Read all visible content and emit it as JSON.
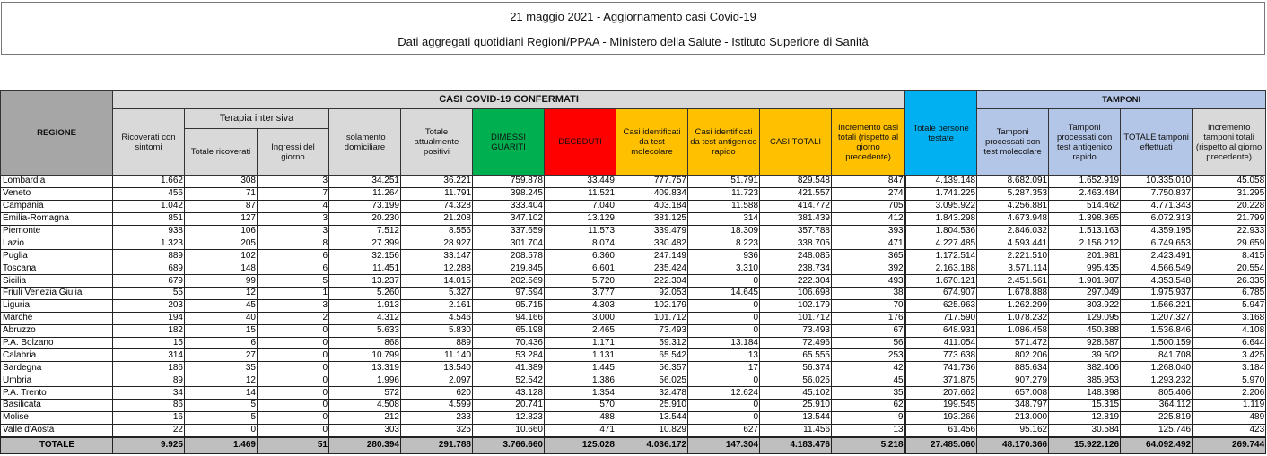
{
  "title": {
    "line1": "21 maggio 2021 - Aggiornamento casi Covid-19",
    "line2": "Dati aggregati quotidiani Regioni/PPAA - Ministero della Salute - Istituto Superiore di Sanità"
  },
  "header": {
    "regione": "REGIONE",
    "casi_group": "CASI COVID-19 CONFERMATI",
    "tamponi_group": "TAMPONI",
    "terapia_group": "Terapia intensiva",
    "ricoverati": "Ricoverati con sintomi",
    "ti_totale": "Totale ricoverati",
    "ti_ingressi": "Ingressi del giorno",
    "isolamento": "Isolamento domiciliare",
    "attualmente_positivi": "Totale attualmente positivi",
    "dimessi": "DIMESSI GUARITI",
    "deceduti": "DECEDUTI",
    "casi_molecolare": "Casi identificati da test molecolare",
    "casi_antigenico": "Casi identificati da test antigenico rapido",
    "casi_totali": "CASI TOTALI",
    "incremento_casi": "Incremento casi totali (rispetto al giorno precedente)",
    "persone_testate": "Totale persone testate",
    "tamponi_molecolare": "Tamponi processati con test molecolare",
    "tamponi_antigenico": "Tamponi processati con test antigenico rapido",
    "tamponi_totale": "TOTALE tamponi effettuati",
    "incremento_tamponi": "Incremento tamponi totali (rispetto al giorno precedente)"
  },
  "colors": {
    "dimessi": "#00b050",
    "deceduti": "#ff0000",
    "casi": "#ffc000",
    "persone_testate": "#00b0f0",
    "tamponi": "#b4c6e7",
    "header_grey": "#a6a6a6"
  },
  "rows": [
    [
      "Lombardia",
      "1.662",
      "308",
      "3",
      "34.251",
      "36.221",
      "759.878",
      "33.449",
      "777.757",
      "51.791",
      "829.548",
      "847",
      "4.139.148",
      "8.682.091",
      "1.652.919",
      "10.335.010",
      "45.058"
    ],
    [
      "Veneto",
      "456",
      "71",
      "7",
      "11.264",
      "11.791",
      "398.245",
      "11.521",
      "409.834",
      "11.723",
      "421.557",
      "274",
      "1.741.225",
      "5.287.353",
      "2.463.484",
      "7.750.837",
      "31.295"
    ],
    [
      "Campania",
      "1.042",
      "87",
      "4",
      "73.199",
      "74.328",
      "333.404",
      "7.040",
      "403.184",
      "11.588",
      "414.772",
      "705",
      "3.095.922",
      "4.256.881",
      "514.462",
      "4.771.343",
      "20.228"
    ],
    [
      "Emilia-Romagna",
      "851",
      "127",
      "3",
      "20.230",
      "21.208",
      "347.102",
      "13.129",
      "381.125",
      "314",
      "381.439",
      "412",
      "1.843.298",
      "4.673.948",
      "1.398.365",
      "6.072.313",
      "21.799"
    ],
    [
      "Piemonte",
      "938",
      "106",
      "3",
      "7.512",
      "8.556",
      "337.659",
      "11.573",
      "339.479",
      "18.309",
      "357.788",
      "393",
      "1.804.536",
      "2.846.032",
      "1.513.163",
      "4.359.195",
      "22.933"
    ],
    [
      "Lazio",
      "1.323",
      "205",
      "8",
      "27.399",
      "28.927",
      "301.704",
      "8.074",
      "330.482",
      "8.223",
      "338.705",
      "471",
      "4.227.485",
      "4.593.441",
      "2.156.212",
      "6.749.653",
      "29.659"
    ],
    [
      "Puglia",
      "889",
      "102",
      "6",
      "32.156",
      "33.147",
      "208.578",
      "6.360",
      "247.149",
      "936",
      "248.085",
      "365",
      "1.172.514",
      "2.221.510",
      "201.981",
      "2.423.491",
      "8.415"
    ],
    [
      "Toscana",
      "689",
      "148",
      "6",
      "11.451",
      "12.288",
      "219.845",
      "6.601",
      "235.424",
      "3.310",
      "238.734",
      "392",
      "2.163.188",
      "3.571.114",
      "995.435",
      "4.566.549",
      "20.554"
    ],
    [
      "Sicilia",
      "679",
      "99",
      "5",
      "13.237",
      "14.015",
      "202.569",
      "5.720",
      "222.304",
      "0",
      "222.304",
      "493",
      "1.670.121",
      "2.451.561",
      "1.901.987",
      "4.353.548",
      "26.335"
    ],
    [
      "Friuli Venezia Giulia",
      "55",
      "12",
      "1",
      "5.260",
      "5.327",
      "97.594",
      "3.777",
      "92.053",
      "14.645",
      "106.698",
      "38",
      "674.907",
      "1.678.888",
      "297.049",
      "1.975.937",
      "6.785"
    ],
    [
      "Liguria",
      "203",
      "45",
      "3",
      "1.913",
      "2.161",
      "95.715",
      "4.303",
      "102.179",
      "0",
      "102.179",
      "70",
      "625.963",
      "1.262.299",
      "303.922",
      "1.566.221",
      "5.947"
    ],
    [
      "Marche",
      "194",
      "40",
      "2",
      "4.312",
      "4.546",
      "94.166",
      "3.000",
      "101.712",
      "0",
      "101.712",
      "176",
      "717.590",
      "1.078.232",
      "129.095",
      "1.207.327",
      "3.168"
    ],
    [
      "Abruzzo",
      "182",
      "15",
      "0",
      "5.633",
      "5.830",
      "65.198",
      "2.465",
      "73.493",
      "0",
      "73.493",
      "67",
      "648.931",
      "1.086.458",
      "450.388",
      "1.536.846",
      "4.108"
    ],
    [
      "P.A. Bolzano",
      "15",
      "6",
      "0",
      "868",
      "889",
      "70.436",
      "1.171",
      "59.312",
      "13.184",
      "72.496",
      "56",
      "411.054",
      "571.472",
      "928.687",
      "1.500.159",
      "6.644"
    ],
    [
      "Calabria",
      "314",
      "27",
      "0",
      "10.799",
      "11.140",
      "53.284",
      "1.131",
      "65.542",
      "13",
      "65.555",
      "253",
      "773.638",
      "802.206",
      "39.502",
      "841.708",
      "3.425"
    ],
    [
      "Sardegna",
      "186",
      "35",
      "0",
      "13.319",
      "13.540",
      "41.389",
      "1.445",
      "56.357",
      "17",
      "56.374",
      "42",
      "741.736",
      "885.634",
      "382.406",
      "1.268.040",
      "3.184"
    ],
    [
      "Umbria",
      "89",
      "12",
      "0",
      "1.996",
      "2.097",
      "52.542",
      "1.386",
      "56.025",
      "0",
      "56.025",
      "45",
      "371.875",
      "907.279",
      "385.953",
      "1.293.232",
      "5.970"
    ],
    [
      "P.A. Trento",
      "34",
      "14",
      "0",
      "572",
      "620",
      "43.128",
      "1.354",
      "32.478",
      "12.624",
      "45.102",
      "35",
      "207.662",
      "657.008",
      "148.398",
      "805.406",
      "2.206"
    ],
    [
      "Basilicata",
      "86",
      "5",
      "0",
      "4.508",
      "4.599",
      "20.741",
      "570",
      "25.910",
      "0",
      "25.910",
      "62",
      "199.545",
      "348.797",
      "15.315",
      "364.112",
      "1.119"
    ],
    [
      "Molise",
      "16",
      "5",
      "0",
      "212",
      "233",
      "12.823",
      "488",
      "13.544",
      "0",
      "13.544",
      "9",
      "193.266",
      "213.000",
      "12.819",
      "225.819",
      "489"
    ],
    [
      "Valle d'Aosta",
      "22",
      "0",
      "0",
      "303",
      "325",
      "10.660",
      "471",
      "10.829",
      "627",
      "11.456",
      "13",
      "61.456",
      "95.162",
      "30.584",
      "125.746",
      "423"
    ]
  ],
  "totale": [
    "TOTALE",
    "9.925",
    "1.469",
    "51",
    "280.394",
    "291.788",
    "3.766.660",
    "125.028",
    "4.036.172",
    "147.304",
    "4.183.476",
    "5.218",
    "27.485.060",
    "48.170.366",
    "15.922.126",
    "64.092.492",
    "269.744"
  ]
}
